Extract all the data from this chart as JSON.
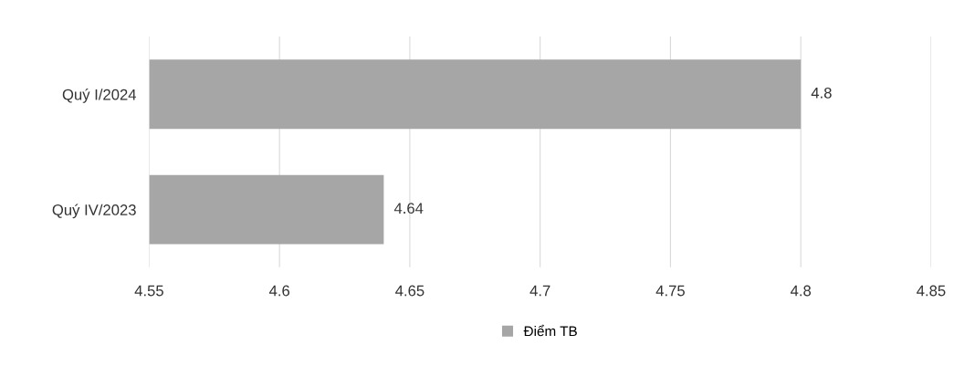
{
  "chart_data": {
    "type": "bar",
    "orientation": "horizontal",
    "categories": [
      "Quý I/2024",
      "Quý IV/2023"
    ],
    "series": [
      {
        "name": "Điểm TB",
        "color": "#a6a6a6",
        "values": [
          4.8,
          4.64
        ]
      }
    ],
    "xlim": [
      4.55,
      4.85
    ],
    "xticks": [
      4.55,
      4.6,
      4.65,
      4.7,
      4.75,
      4.8,
      4.85
    ],
    "grid": "x",
    "legend": "bottom",
    "data_labels": true
  }
}
